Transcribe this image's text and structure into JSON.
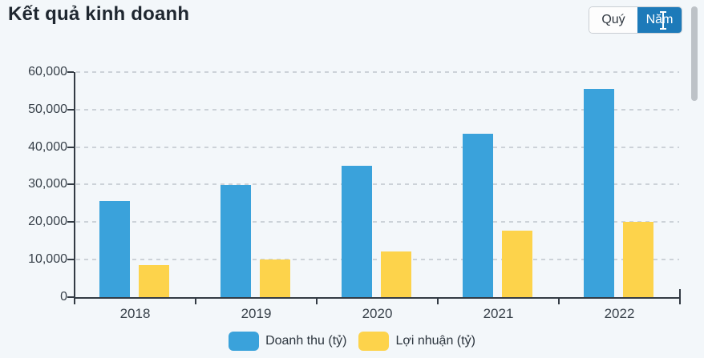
{
  "header": {
    "title": "Kết quả kinh doanh"
  },
  "toolbar": {
    "quarter_label": "Quý",
    "year_label": "Năm",
    "active": "Năm"
  },
  "icons": {
    "text_cursor": "i-beam"
  },
  "colors": {
    "revenue_bar": "#3aa2db",
    "profit_bar": "#fdd34b",
    "active_button": "#1d7ab9",
    "axis": "#333b44",
    "grid": "#ccd2d8",
    "background": "#f3f7fa",
    "label_text": "#38414a"
  },
  "chart_data": {
    "type": "bar",
    "title": "Kết quả kinh doanh",
    "categories": [
      "2018",
      "2019",
      "2020",
      "2021",
      "2022"
    ],
    "series": [
      {
        "name": "Doanh thu (tỷ)",
        "color": "#3aa2db",
        "values": [
          25600,
          29900,
          35000,
          43600,
          55500
        ]
      },
      {
        "name": "Lợi nhuận (tỷ)",
        "color": "#fdd34b",
        "values": [
          8600,
          10000,
          12200,
          17800,
          20100
        ]
      }
    ],
    "ylim": [
      0,
      60000
    ],
    "ytick_step": 10000,
    "ytick_labels": [
      "0",
      "10,000",
      "20,000",
      "30,000",
      "40,000",
      "50,000",
      "60,000"
    ],
    "xlabel": "",
    "ylabel": "",
    "grid": "horizontal-dashed",
    "legend_position": "bottom"
  }
}
